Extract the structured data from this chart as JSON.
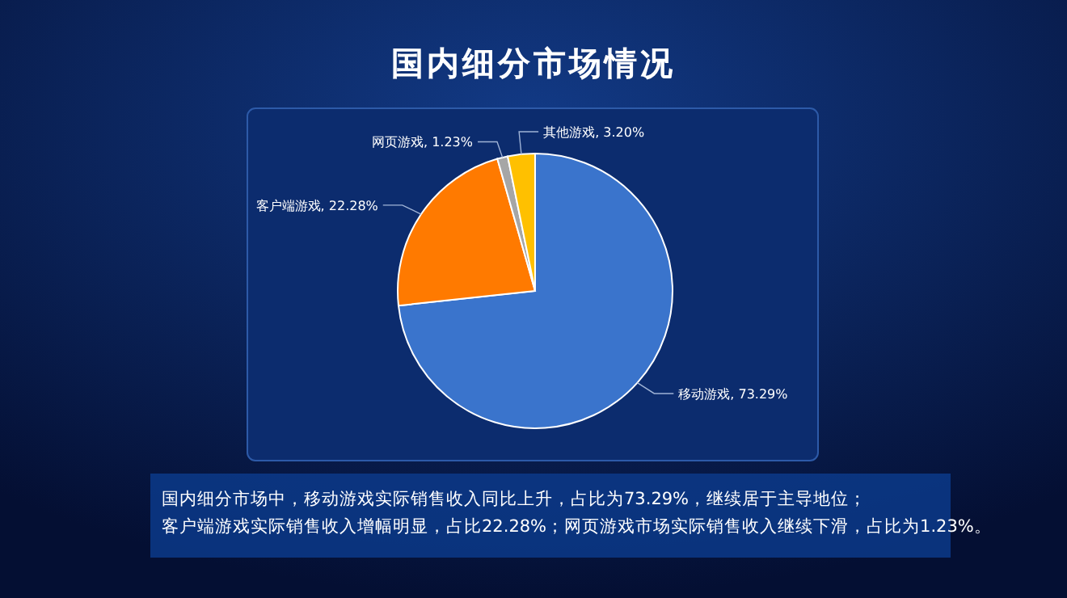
{
  "chart_data": {
    "type": "pie",
    "title": "国内细分市场情况",
    "categories": [
      "移动游戏",
      "客户端游戏",
      "网页游戏",
      "其他游戏"
    ],
    "values": [
      73.29,
      22.28,
      1.23,
      3.2
    ],
    "value_labels": [
      "73.29%",
      "22.28%",
      "1.23%",
      "3.20%"
    ],
    "colors": [
      "#3a74cc",
      "#ff7a00",
      "#a6a6a6",
      "#ffc000"
    ],
    "annotations": [
      "国内细分市场中，移动游戏实际销售收入同比上升，占比为73.29%，继续居于主导地位；",
      "客户端游戏实际销售收入增幅明显，占比22.28%；网页游戏市场实际销售收入继续下滑，占比为1.23%。"
    ]
  }
}
